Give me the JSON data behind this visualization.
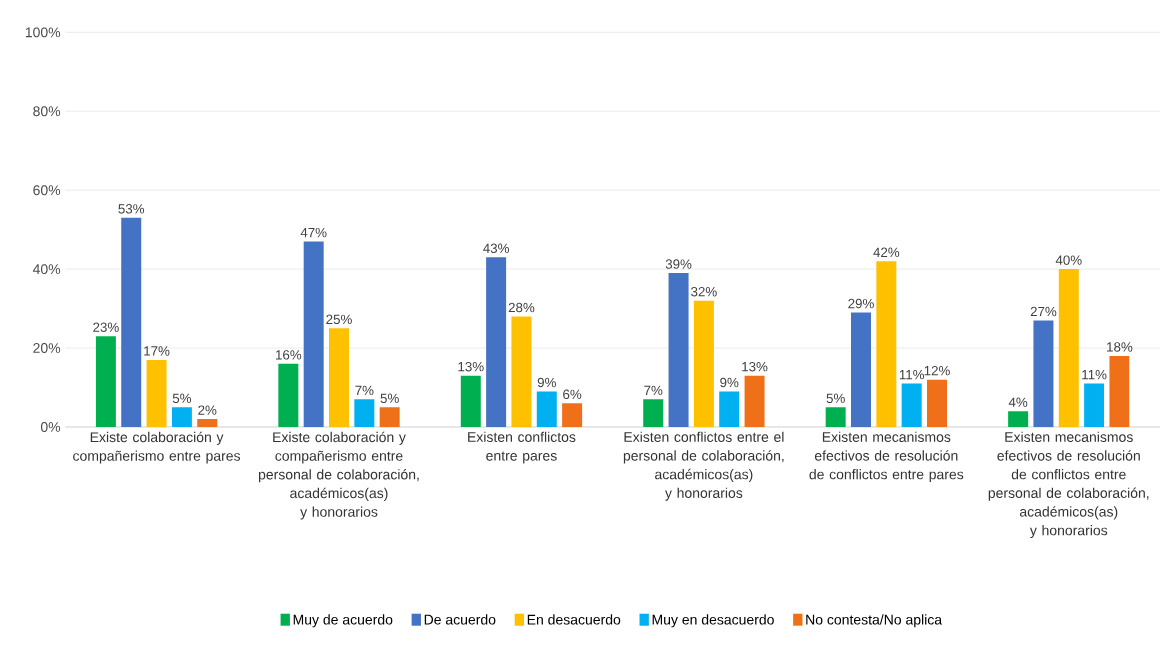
{
  "chart_data": {
    "type": "bar",
    "categories": [
      "Existe colaboración y compañerismo entre pares",
      "Existe colaboración y compañerismo entre personal de colaboración, académicos(as) y honorarios",
      "Existen conflictos entre pares",
      "Existen conflictos entre el personal de colaboración, académicos(as) y honorarios",
      "Existen mecanismos efectivos de resolución de conflictos entre pares",
      "Existen mecanismos efectivos de resolución de conflictos entre personal de colaboración, académicos(as) y honorarios"
    ],
    "series": [
      {
        "name": "Muy de acuerdo",
        "color": "#00b050",
        "values": [
          23,
          16,
          13,
          7,
          5,
          4
        ],
        "value_labels": [
          "23%",
          "16%",
          "13%",
          "7%",
          "5%",
          "4%"
        ]
      },
      {
        "name": "De acuerdo",
        "color": "#4472c4",
        "values": [
          53,
          47,
          43,
          39,
          29,
          27
        ],
        "value_labels": [
          "53%",
          "47%",
          "43%",
          "39%",
          "29%",
          "27%"
        ]
      },
      {
        "name": "En desacuerdo",
        "color": "#ffc000",
        "values": [
          17,
          25,
          28,
          32,
          42,
          40
        ],
        "value_labels": [
          "17%",
          "25%",
          "28%",
          "32%",
          "42%",
          "40%"
        ]
      },
      {
        "name": "Muy en desacuerdo",
        "color": "#00b0f0",
        "values": [
          5,
          7,
          9,
          9,
          11,
          11
        ],
        "value_labels": [
          "5%",
          "7%",
          "9%",
          "9%",
          "11%",
          "11%"
        ]
      },
      {
        "name": "No contesta/No aplica",
        "color": "#f0701a",
        "values": [
          2,
          5,
          6,
          13,
          12,
          18
        ],
        "value_labels": [
          "2%",
          "5%",
          "6%",
          "13%",
          "12%",
          "18%"
        ]
      }
    ],
    "ylim": [
      0,
      100
    ],
    "yticks": [
      {
        "value": 0,
        "label": "0%"
      },
      {
        "value": 20,
        "label": "20%"
      },
      {
        "value": 40,
        "label": "40%"
      },
      {
        "value": 60,
        "label": "60%"
      },
      {
        "value": 80,
        "label": "80%"
      },
      {
        "value": 100,
        "label": "100%"
      }
    ],
    "grid": "y",
    "legend": "bottom"
  }
}
